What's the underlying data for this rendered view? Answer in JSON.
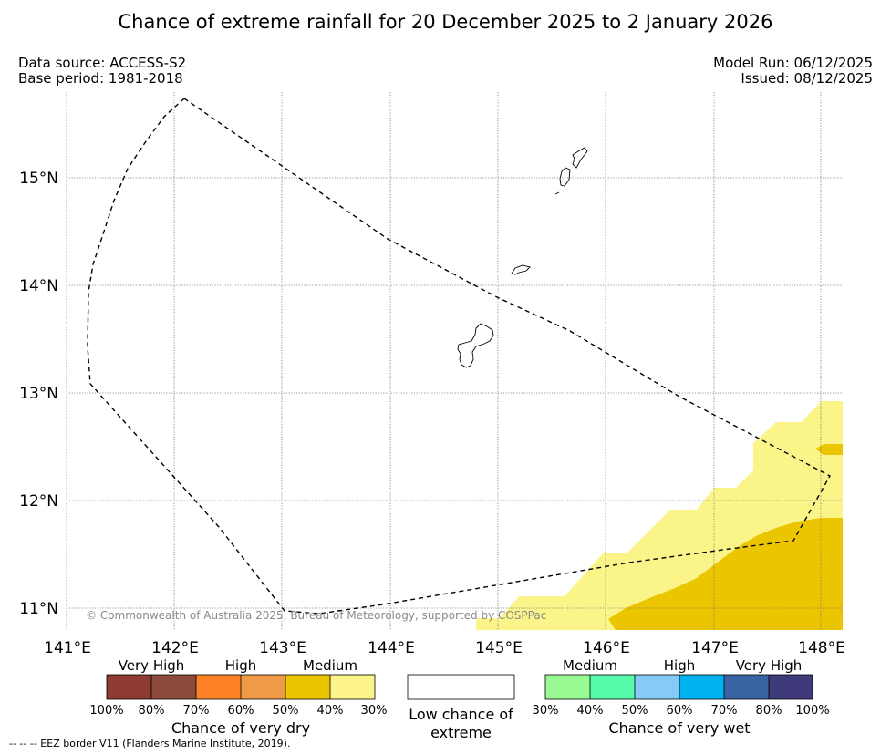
{
  "title": "Chance of extreme rainfall for 20 December 2025 to 2 January 2026",
  "meta": {
    "data_source": "Data source: ACCESS-S2",
    "base_period": "Base period: 1981-2018",
    "model_run": "Model Run: 06/12/2025",
    "issued": "Issued: 08/12/2025"
  },
  "map": {
    "lat_labels": [
      "15°N",
      "14°N",
      "13°N",
      "12°N",
      "11°N"
    ],
    "lon_labels": [
      "141°E",
      "142°E",
      "143°E",
      "144°E",
      "145°E",
      "146°E",
      "147°E",
      "148°E"
    ],
    "copyright": "© Commonwealth of Australia 2025, Bureau of Meteorology, supported by COSPPac",
    "colors": {
      "medium_dry_40_50": "#ebc600",
      "medium_dry_30_40": "#fbf489",
      "land_outline": "#000000",
      "eez": "#000000"
    }
  },
  "legend": {
    "dry": {
      "categories": [
        "Very High",
        "High",
        "Medium"
      ],
      "ticks": [
        "100%",
        "80%",
        "70%",
        "60%",
        "50%",
        "40%",
        "30%"
      ],
      "colors": [
        "#8e3b33",
        "#8b4a3b",
        "#ff8126",
        "#ee9a47",
        "#ebc600",
        "#fdf58b"
      ],
      "title": "Chance of very dry"
    },
    "low": {
      "label": "Low chance of extreme"
    },
    "wet": {
      "categories": [
        "Medium",
        "High",
        "Very High"
      ],
      "ticks": [
        "30%",
        "40%",
        "50%",
        "60%",
        "70%",
        "80%",
        "100%"
      ],
      "colors": [
        "#99f993",
        "#56fbaa",
        "#86cbf8",
        "#00b2ee",
        "#3a63a3",
        "#3f3a7a"
      ],
      "title": "Chance of very wet"
    }
  },
  "footer": {
    "eez_note": "--  --  -- EEZ border V11 (Flanders Marine Institute, 2019)."
  }
}
